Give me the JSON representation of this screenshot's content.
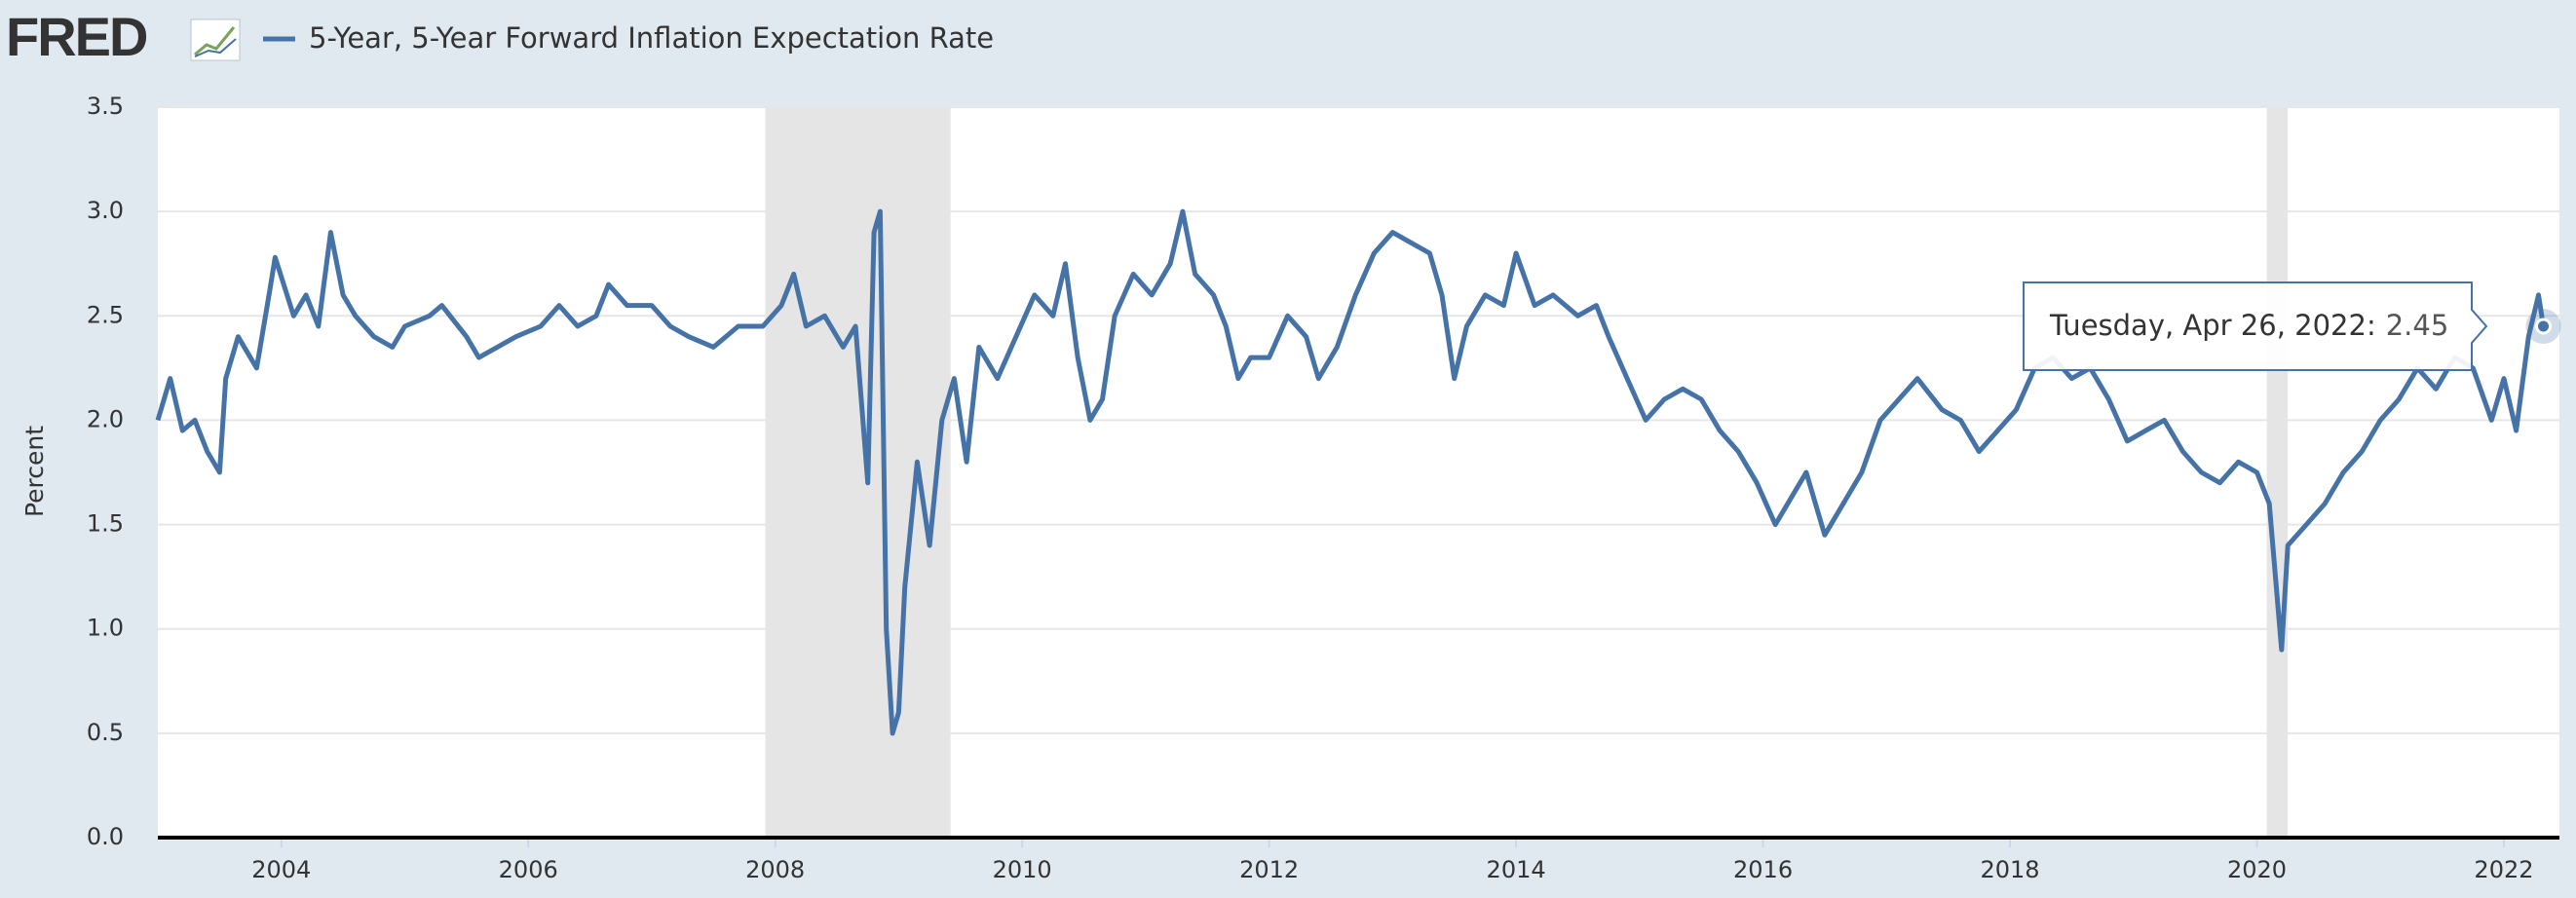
{
  "logo": "FRED",
  "chart_data": {
    "type": "line",
    "ylabel": "Percent",
    "x": [
      2003.0,
      2003.1,
      2003.2,
      2003.3,
      2003.4,
      2003.5,
      2003.55,
      2003.65,
      2003.8,
      2003.9,
      2003.95,
      2004.1,
      2004.2,
      2004.3,
      2004.4,
      2004.5,
      2004.6,
      2004.75,
      2004.9,
      2005.0,
      2005.2,
      2005.3,
      2005.5,
      2005.6,
      2005.75,
      2005.9,
      2006.1,
      2006.25,
      2006.4,
      2006.55,
      2006.65,
      2006.8,
      2007.0,
      2007.15,
      2007.3,
      2007.5,
      2007.7,
      2007.9,
      2008.05,
      2008.15,
      2008.25,
      2008.4,
      2008.55,
      2008.65,
      2008.75,
      2008.8,
      2008.85,
      2008.9,
      2008.95,
      2009.0,
      2009.05,
      2009.15,
      2009.25,
      2009.35,
      2009.45,
      2009.55,
      2009.65,
      2009.8,
      2009.95,
      2010.1,
      2010.25,
      2010.35,
      2010.45,
      2010.55,
      2010.65,
      2010.75,
      2010.9,
      2011.05,
      2011.2,
      2011.3,
      2011.4,
      2011.55,
      2011.65,
      2011.75,
      2011.85,
      2012.0,
      2012.15,
      2012.3,
      2012.4,
      2012.55,
      2012.7,
      2012.85,
      2013.0,
      2013.15,
      2013.3,
      2013.4,
      2013.5,
      2013.6,
      2013.75,
      2013.9,
      2014.0,
      2014.15,
      2014.3,
      2014.5,
      2014.65,
      2014.75,
      2014.9,
      2015.05,
      2015.2,
      2015.35,
      2015.5,
      2015.65,
      2015.8,
      2015.95,
      2016.1,
      2016.2,
      2016.35,
      2016.5,
      2016.65,
      2016.8,
      2016.95,
      2017.1,
      2017.25,
      2017.45,
      2017.6,
      2017.75,
      2017.9,
      2018.05,
      2018.2,
      2018.35,
      2018.5,
      2018.65,
      2018.8,
      2018.95,
      2019.1,
      2019.25,
      2019.4,
      2019.55,
      2019.7,
      2019.85,
      2020.0,
      2020.1,
      2020.2,
      2020.25,
      2020.4,
      2020.55,
      2020.7,
      2020.85,
      2021.0,
      2021.15,
      2021.3,
      2021.45,
      2021.6,
      2021.75,
      2021.9,
      2022.0,
      2022.1,
      2022.2,
      2022.28,
      2022.32
    ],
    "series": [
      {
        "name": "5-Year, 5-Year Forward Inflation Expectation Rate",
        "color": "#4572a7",
        "values": [
          2.0,
          2.2,
          1.95,
          2.0,
          1.85,
          1.75,
          2.2,
          2.4,
          2.25,
          2.6,
          2.78,
          2.5,
          2.6,
          2.45,
          2.9,
          2.6,
          2.5,
          2.4,
          2.35,
          2.45,
          2.5,
          2.55,
          2.4,
          2.3,
          2.35,
          2.4,
          2.45,
          2.55,
          2.45,
          2.5,
          2.65,
          2.55,
          2.55,
          2.45,
          2.4,
          2.35,
          2.45,
          2.45,
          2.55,
          2.7,
          2.45,
          2.5,
          2.35,
          2.45,
          1.7,
          2.9,
          3.0,
          1.0,
          0.5,
          0.6,
          1.2,
          1.8,
          1.4,
          2.0,
          2.2,
          1.8,
          2.35,
          2.2,
          2.4,
          2.6,
          2.5,
          2.75,
          2.3,
          2.0,
          2.1,
          2.5,
          2.7,
          2.6,
          2.75,
          3.0,
          2.7,
          2.6,
          2.45,
          2.2,
          2.3,
          2.3,
          2.5,
          2.4,
          2.2,
          2.35,
          2.6,
          2.8,
          2.9,
          2.85,
          2.8,
          2.6,
          2.2,
          2.45,
          2.6,
          2.55,
          2.8,
          2.55,
          2.6,
          2.5,
          2.55,
          2.4,
          2.2,
          2.0,
          2.1,
          2.15,
          2.1,
          1.95,
          1.85,
          1.7,
          1.5,
          1.6,
          1.75,
          1.45,
          1.6,
          1.75,
          2.0,
          2.1,
          2.2,
          2.05,
          2.0,
          1.85,
          1.95,
          2.05,
          2.25,
          2.3,
          2.2,
          2.25,
          2.1,
          1.9,
          1.95,
          2.0,
          1.85,
          1.75,
          1.7,
          1.8,
          1.75,
          1.6,
          0.9,
          1.4,
          1.5,
          1.6,
          1.75,
          1.85,
          2.0,
          2.1,
          2.25,
          2.15,
          2.3,
          2.25,
          2.0,
          2.2,
          1.95,
          2.4,
          2.6,
          2.45
        ]
      }
    ],
    "recessions": [
      [
        2007.92,
        2009.42
      ],
      [
        2020.08,
        2020.25
      ]
    ],
    "xlim": [
      2003.0,
      2022.45
    ],
    "xticks": [
      2004,
      2006,
      2008,
      2010,
      2012,
      2014,
      2016,
      2018,
      2020,
      2022
    ],
    "ylim": [
      0,
      3.5
    ],
    "yticks": [
      {
        "value": 0,
        "label": "0.0"
      },
      0.5,
      {
        "value": 1,
        "label": "1.0"
      },
      1.5,
      {
        "value": 2,
        "label": "2.0"
      },
      2.5,
      {
        "value": 3,
        "label": "3.0"
      },
      3.5
    ],
    "grid": true,
    "tooltip": {
      "label": "Tuesday, Apr 26, 2022:",
      "x": 2022.32,
      "value": 2.45
    }
  }
}
